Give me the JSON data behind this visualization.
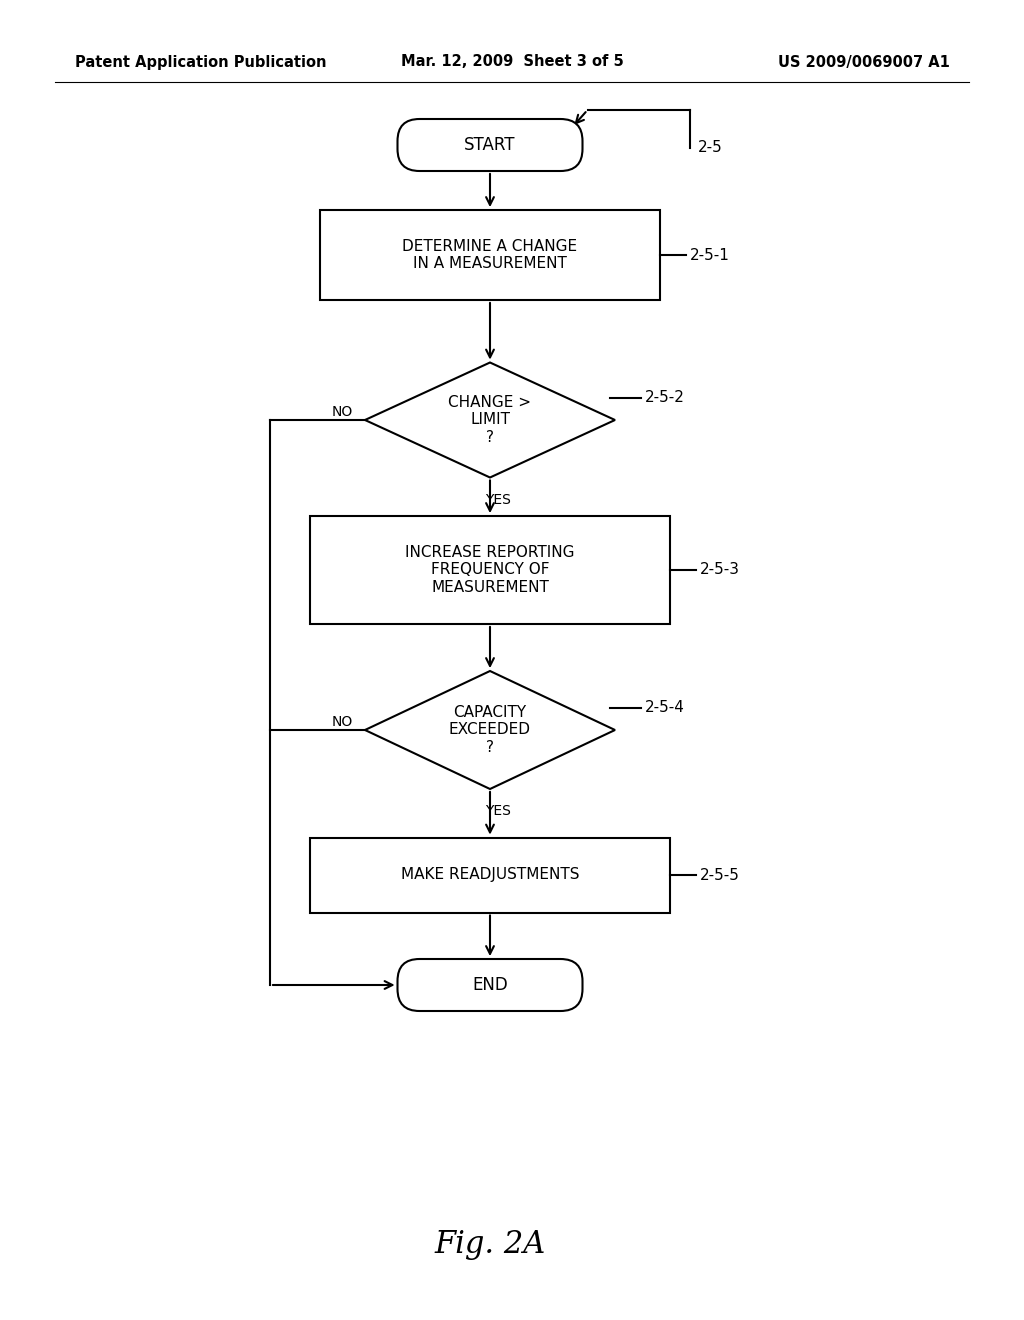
{
  "bg_color": "#ffffff",
  "header_left": "Patent Application Publication",
  "header_center": "Mar. 12, 2009  Sheet 3 of 5",
  "header_right": "US 2009/0069007 A1",
  "header_fontsize": 10.5,
  "fig_label": "Fig. 2A",
  "fig_label_fontsize": 22,
  "ref_25": "2-5",
  "ref_251": "2-5-1",
  "ref_252": "2-5-2",
  "ref_253": "2-5-3",
  "ref_254": "2-5-4",
  "ref_255": "2-5-5",
  "start_text": "START",
  "box1_text": "DETERMINE A CHANGE\nIN A MEASUREMENT",
  "diamond1_text": "CHANGE >\nLIMIT\n?",
  "box2_text": "INCREASE REPORTING\nFREQUENCY OF\nMEASUREMENT",
  "diamond2_text": "CAPACITY\nEXCEEDED\n?",
  "box3_text": "MAKE READJUSTMENTS",
  "end_text": "END",
  "line_color": "#000000",
  "text_color": "#000000",
  "lw": 1.5
}
